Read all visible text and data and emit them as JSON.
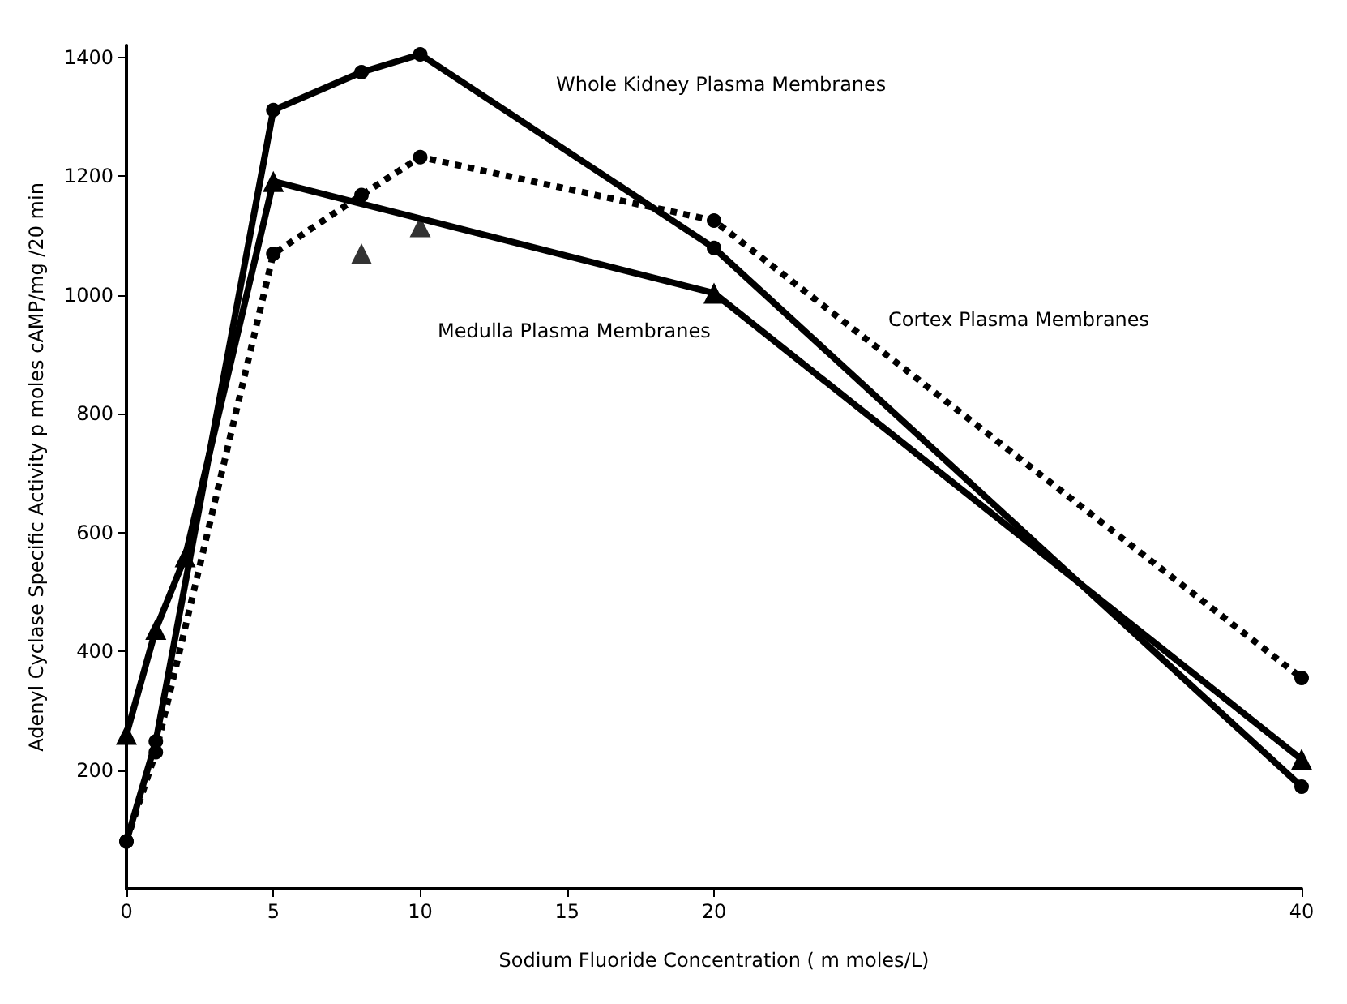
{
  "chart_data": {
    "type": "line",
    "xlabel": "Sodium Fluoride Concentration ( m moles/L)",
    "ylabel": "Adenyl Cyclase Specific Activity p moles cAMP/mg /20 min",
    "xlim": [
      0,
      40
    ],
    "xticks": [
      0,
      5,
      10,
      15,
      20,
      40
    ],
    "ylim": [
      0,
      1420
    ],
    "yticks": [
      200,
      400,
      600,
      800,
      1000,
      1200,
      1400
    ],
    "grid": false,
    "series": [
      {
        "x": [
          0,
          1,
          5,
          8,
          10,
          20,
          40
        ],
        "values": [
          80,
          248,
          1311,
          1375,
          1405,
          1079,
          172
        ],
        "color": "#000000",
        "marker": "circle",
        "line_style": "solid"
      },
      {
        "x": [
          0,
          1,
          5,
          8,
          10,
          20,
          40
        ],
        "values": [
          80,
          230,
          1069,
          1168,
          1232,
          1125,
          355
        ],
        "color": "#000000",
        "marker": "circle",
        "line_style": "dotted"
      },
      {
        "x": [
          0,
          1,
          2,
          5,
          20,
          40
        ],
        "values": [
          260,
          437,
          559,
          1191,
          1003,
          218
        ],
        "color": "#000000",
        "marker": "triangle",
        "line_style": "solid"
      },
      {
        "type": "scatter",
        "x": [
          8,
          10
        ],
        "values": [
          1069,
          1115
        ],
        "color": "#000000",
        "marker": "triangle"
      }
    ],
    "annotations": [
      "Whole Kidney Plasma Membranes",
      "Medulla Plasma Membranes",
      "Cortex Plasma Membranes"
    ]
  }
}
